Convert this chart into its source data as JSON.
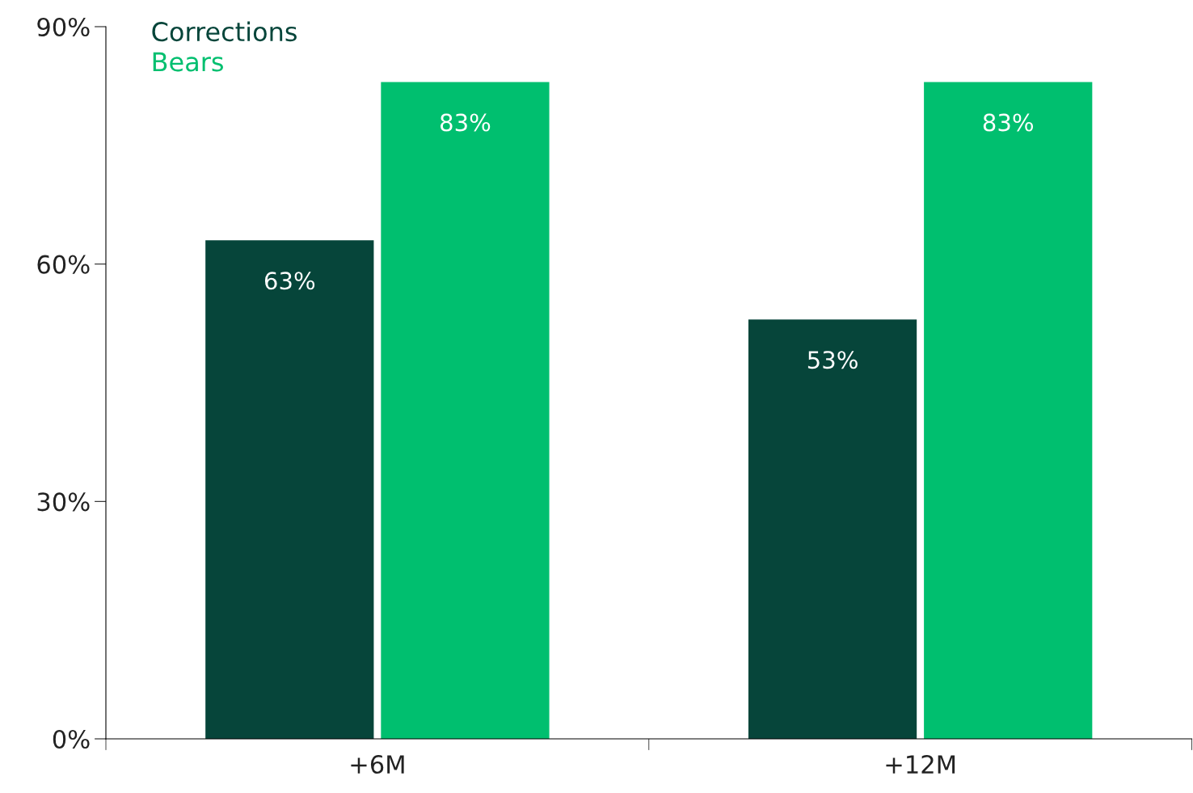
{
  "chart_data": {
    "type": "bar",
    "categories": [
      "+6M",
      "+12M"
    ],
    "series": [
      {
        "name": "Corrections",
        "color": "#06453a",
        "values": [
          63,
          53
        ],
        "value_labels": [
          "63%",
          "53%"
        ]
      },
      {
        "name": "Bears",
        "color": "#00bf6f",
        "values": [
          83,
          83
        ],
        "value_labels": [
          "83%",
          "83%"
        ]
      }
    ],
    "ylim": [
      0,
      90
    ],
    "yticks": [
      {
        "value": 0,
        "label": "0%"
      },
      {
        "value": 30,
        "label": "30%"
      },
      {
        "value": 60,
        "label": "60%"
      },
      {
        "value": 90,
        "label": "90%"
      }
    ],
    "grid": false,
    "legend": "top left"
  }
}
